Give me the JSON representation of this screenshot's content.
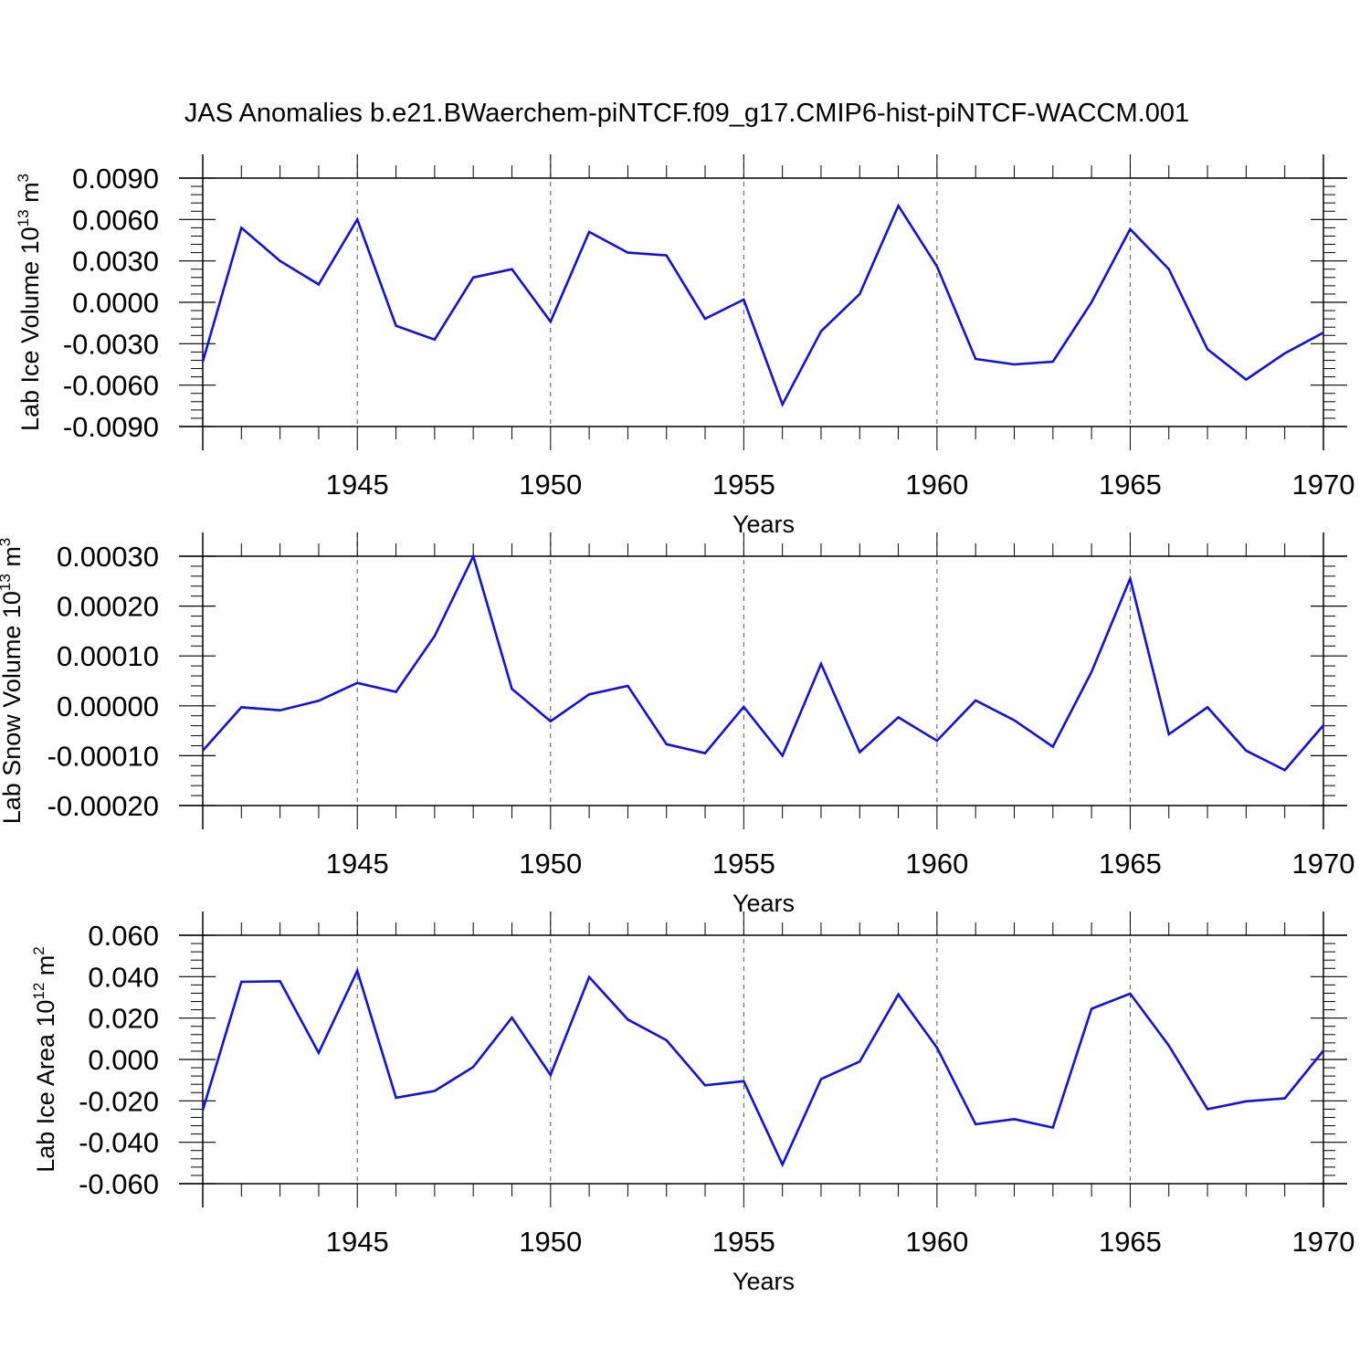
{
  "chart_data": {
    "title": "JAS Anomalies b.e21.BWaerchem-piNTCF.f09_g17.CMIP6-hist-piNTCF-WACCM.001",
    "type": "line",
    "x": [
      1941,
      1942,
      1943,
      1944,
      1945,
      1946,
      1947,
      1948,
      1949,
      1950,
      1951,
      1952,
      1953,
      1954,
      1955,
      1956,
      1957,
      1958,
      1959,
      1960,
      1961,
      1962,
      1963,
      1964,
      1965,
      1966,
      1967,
      1968,
      1969,
      1970
    ],
    "xlim": [
      1941,
      1970
    ],
    "xticks": [
      1945,
      1950,
      1955,
      1960,
      1965,
      1970
    ],
    "xlabel": "Years",
    "line_color": "#1010e6",
    "panels": [
      {
        "id": "ice-volume",
        "ylabel": "Lab Ice Volume 10",
        "ylabel_exp": "13",
        "ylabel_unit": " m",
        "ylabel_unit_exp": "3",
        "ylim": [
          -0.009,
          0.009
        ],
        "yticks": [
          -0.009,
          -0.006,
          -0.003,
          0,
          0.003,
          0.006,
          0.009
        ],
        "ytick_labels": [
          "-0.0090",
          "-0.0060",
          "-0.0030",
          "0.0000",
          "0.0030",
          "0.0060",
          "0.0090"
        ],
        "values": [
          -0.0043,
          0.0054,
          0.003,
          0.0013,
          0.006,
          -0.0017,
          -0.0027,
          0.0018,
          0.0024,
          -0.0014,
          0.0051,
          0.0036,
          0.0034,
          -0.0012,
          0.0002,
          -0.0074,
          -0.0021,
          0.0006,
          0.007,
          0.0026,
          -0.0041,
          -0.0045,
          -0.0043,
          0.0,
          0.0053,
          0.0024,
          -0.0034,
          -0.0056,
          -0.0037,
          -0.0022
        ]
      },
      {
        "id": "snow-volume",
        "ylabel": "Lab Snow Volume 10",
        "ylabel_exp": "13",
        "ylabel_unit": " m",
        "ylabel_unit_exp": "3",
        "ylim": [
          -0.0002,
          0.0003
        ],
        "yticks": [
          -0.0002,
          -0.0001,
          0,
          0.0001,
          0.0002,
          0.0003
        ],
        "ytick_labels": [
          "-0.00020",
          "-0.00010",
          "0.00000",
          "0.00010",
          "0.00020",
          "0.00030"
        ],
        "values": [
          -9e-05,
          -3e-06,
          -9e-06,
          1e-05,
          4.6e-05,
          2.8e-05,
          0.00014,
          0.0003,
          3.4e-05,
          -3.1e-05,
          2.3e-05,
          4e-05,
          -7.7e-05,
          -9.5e-05,
          -2e-06,
          -0.0001,
          8.4e-05,
          -9.3e-05,
          -2.3e-05,
          -7e-05,
          1.1e-05,
          -2.9e-05,
          -8.2e-05,
          6.8e-05,
          0.000255,
          -5.7e-05,
          -3e-06,
          -9e-05,
          -0.000129,
          -3.9e-05
        ]
      },
      {
        "id": "ice-area",
        "ylabel": "Lab Ice Area 10",
        "ylabel_exp": "12",
        "ylabel_unit": " m",
        "ylabel_unit_exp": "2",
        "ylim": [
          -0.06,
          0.06
        ],
        "yticks": [
          -0.06,
          -0.04,
          -0.02,
          0,
          0.02,
          0.04,
          0.06
        ],
        "ytick_labels": [
          "-0.060",
          "-0.040",
          "-0.020",
          "0.000",
          "0.020",
          "0.040",
          "0.060"
        ],
        "values": [
          -0.0245,
          0.0375,
          0.0378,
          0.0032,
          0.0428,
          -0.0185,
          -0.0152,
          -0.0036,
          0.0202,
          -0.0075,
          0.0398,
          0.0193,
          0.0093,
          -0.0125,
          -0.0105,
          -0.0508,
          -0.0095,
          -0.001,
          0.0314,
          0.0057,
          -0.0313,
          -0.0288,
          -0.0329,
          0.0245,
          0.0318,
          0.0067,
          -0.024,
          -0.0202,
          -0.0188,
          0.0043
        ]
      }
    ]
  }
}
